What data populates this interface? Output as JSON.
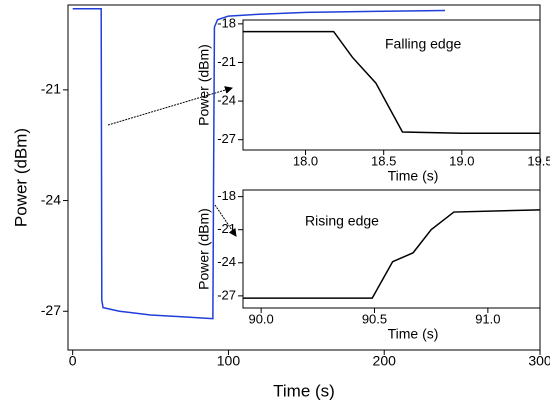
{
  "chart_data": [
    {
      "type": "line",
      "xlabel": "Time (s)",
      "ylabel": "Power (dBm)",
      "x": [
        0,
        18.3,
        18.7,
        19.5,
        30,
        50,
        70,
        89.5,
        90.0,
        90.5,
        91,
        93,
        100,
        120,
        150,
        200,
        239
      ],
      "series": [
        {
          "color": "#1f3fd8",
          "values": [
            -18.8,
            -18.8,
            -26.7,
            -26.9,
            -27.0,
            -27.1,
            -27.15,
            -27.2,
            -27.2,
            -23,
            -19.3,
            -19.1,
            -19.0,
            -18.95,
            -18.9,
            -18.87,
            -18.85
          ]
        }
      ],
      "xlim": [
        -3,
        300
      ],
      "ylim": [
        -28.05,
        -18.7
      ],
      "xticks": [
        0,
        100,
        200,
        300
      ],
      "yticks": [
        -27,
        -24,
        -21
      ]
    },
    {
      "type": "line",
      "xlabel": "Time (s)",
      "ylabel": "Power (dBm)",
      "annotation": "Falling edge",
      "x": [
        17.6,
        18.18,
        18.3,
        18.45,
        18.62,
        19.0,
        19.5
      ],
      "series": [
        {
          "color": "#000000",
          "values": [
            -18.6,
            -18.6,
            -20.6,
            -22.6,
            -26.4,
            -26.5,
            -26.5
          ]
        }
      ],
      "xlim": [
        17.6,
        19.5
      ],
      "ylim": [
        -27.8,
        -17.7
      ],
      "xticks": [
        {
          "value": 18,
          "label": "18.0"
        },
        18.5,
        {
          "value": 19,
          "label": "19.0"
        },
        19.5
      ],
      "yticks": [
        -27,
        -24,
        -21,
        -18
      ]
    },
    {
      "type": "line",
      "xlabel": "Time (s)",
      "ylabel": "Power (dBm)",
      "annotation": "Rising edge",
      "x": [
        89.92,
        90.49,
        90.58,
        90.67,
        90.75,
        90.85,
        91.23
      ],
      "series": [
        {
          "color": "#000000",
          "values": [
            -27.2,
            -27.2,
            -23.9,
            -23.1,
            -21.0,
            -19.4,
            -19.2
          ]
        }
      ],
      "xlim": [
        89.92,
        91.23
      ],
      "ylim": [
        -28.1,
        -17.4
      ],
      "xticks": [
        {
          "value": 90,
          "label": "90.0"
        },
        90.5,
        {
          "value": 91,
          "label": "91.0"
        }
      ],
      "yticks": [
        -27,
        -24,
        -21,
        -18
      ]
    }
  ]
}
